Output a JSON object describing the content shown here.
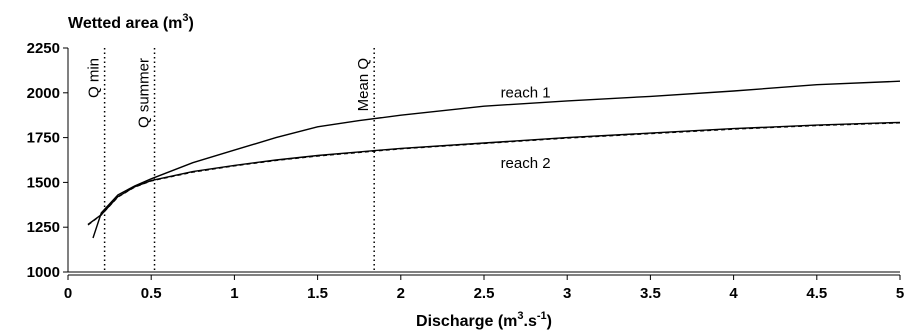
{
  "chart_data": {
    "type": "line",
    "ylabel": "Wetted area (m",
    "ylabel_sup": "3",
    "ylabel_end": ")",
    "xlabel_parts": [
      "Discharge (m",
      "3",
      ".s",
      "-1",
      ")"
    ],
    "xlim": [
      0,
      5
    ],
    "ylim": [
      1000,
      2250
    ],
    "x_ticks": [
      "0",
      "0.5",
      "1",
      "1.5",
      "2",
      "2.5",
      "3",
      "3.5",
      "4",
      "4.5",
      "5"
    ],
    "y_ticks": [
      "1000",
      "1250",
      "1500",
      "1750",
      "2000",
      "2250"
    ],
    "grid": false,
    "series": [
      {
        "name": "reach 1",
        "style": "solid",
        "x": [
          0.15,
          0.2,
          0.3,
          0.4,
          0.5,
          0.75,
          1.0,
          1.25,
          1.5,
          1.75,
          2.0,
          2.5,
          3.0,
          3.5,
          4.0,
          4.5,
          5.0
        ],
        "y": [
          1190,
          1330,
          1430,
          1480,
          1520,
          1610,
          1680,
          1750,
          1810,
          1845,
          1875,
          1925,
          1955,
          1980,
          2010,
          2045,
          2065
        ]
      },
      {
        "name": "reach 2",
        "style": "solid",
        "x": [
          0.12,
          0.2,
          0.3,
          0.4,
          0.5,
          0.75,
          1.0,
          1.25,
          1.5,
          1.75,
          2.0,
          2.5,
          3.0,
          3.5,
          4.0,
          4.5,
          5.0
        ],
        "y": [
          1265,
          1320,
          1420,
          1475,
          1510,
          1560,
          1595,
          1625,
          1650,
          1670,
          1690,
          1720,
          1750,
          1775,
          1800,
          1820,
          1835
        ]
      },
      {
        "name": "",
        "style": "dashed",
        "x": [
          0.12,
          0.2,
          0.3,
          0.4,
          0.5,
          0.75,
          1.0,
          1.25,
          1.5,
          1.75,
          2.0,
          2.5,
          3.0,
          3.5,
          4.0,
          4.5,
          5.0
        ],
        "y": [
          1262,
          1318,
          1418,
          1473,
          1508,
          1557,
          1592,
          1622,
          1647,
          1667,
          1687,
          1717,
          1747,
          1772,
          1797,
          1817,
          1832
        ]
      }
    ],
    "vertical_lines": [
      {
        "label": "Q min",
        "x": 0.22
      },
      {
        "label": "Q summer",
        "x": 0.52
      },
      {
        "label": "Mean Q",
        "x": 1.84
      }
    ],
    "series_labels": [
      {
        "text": "reach 1",
        "x": 2.75,
        "y": 1975
      },
      {
        "text": "reach 2",
        "x": 2.75,
        "y": 1580
      }
    ]
  }
}
